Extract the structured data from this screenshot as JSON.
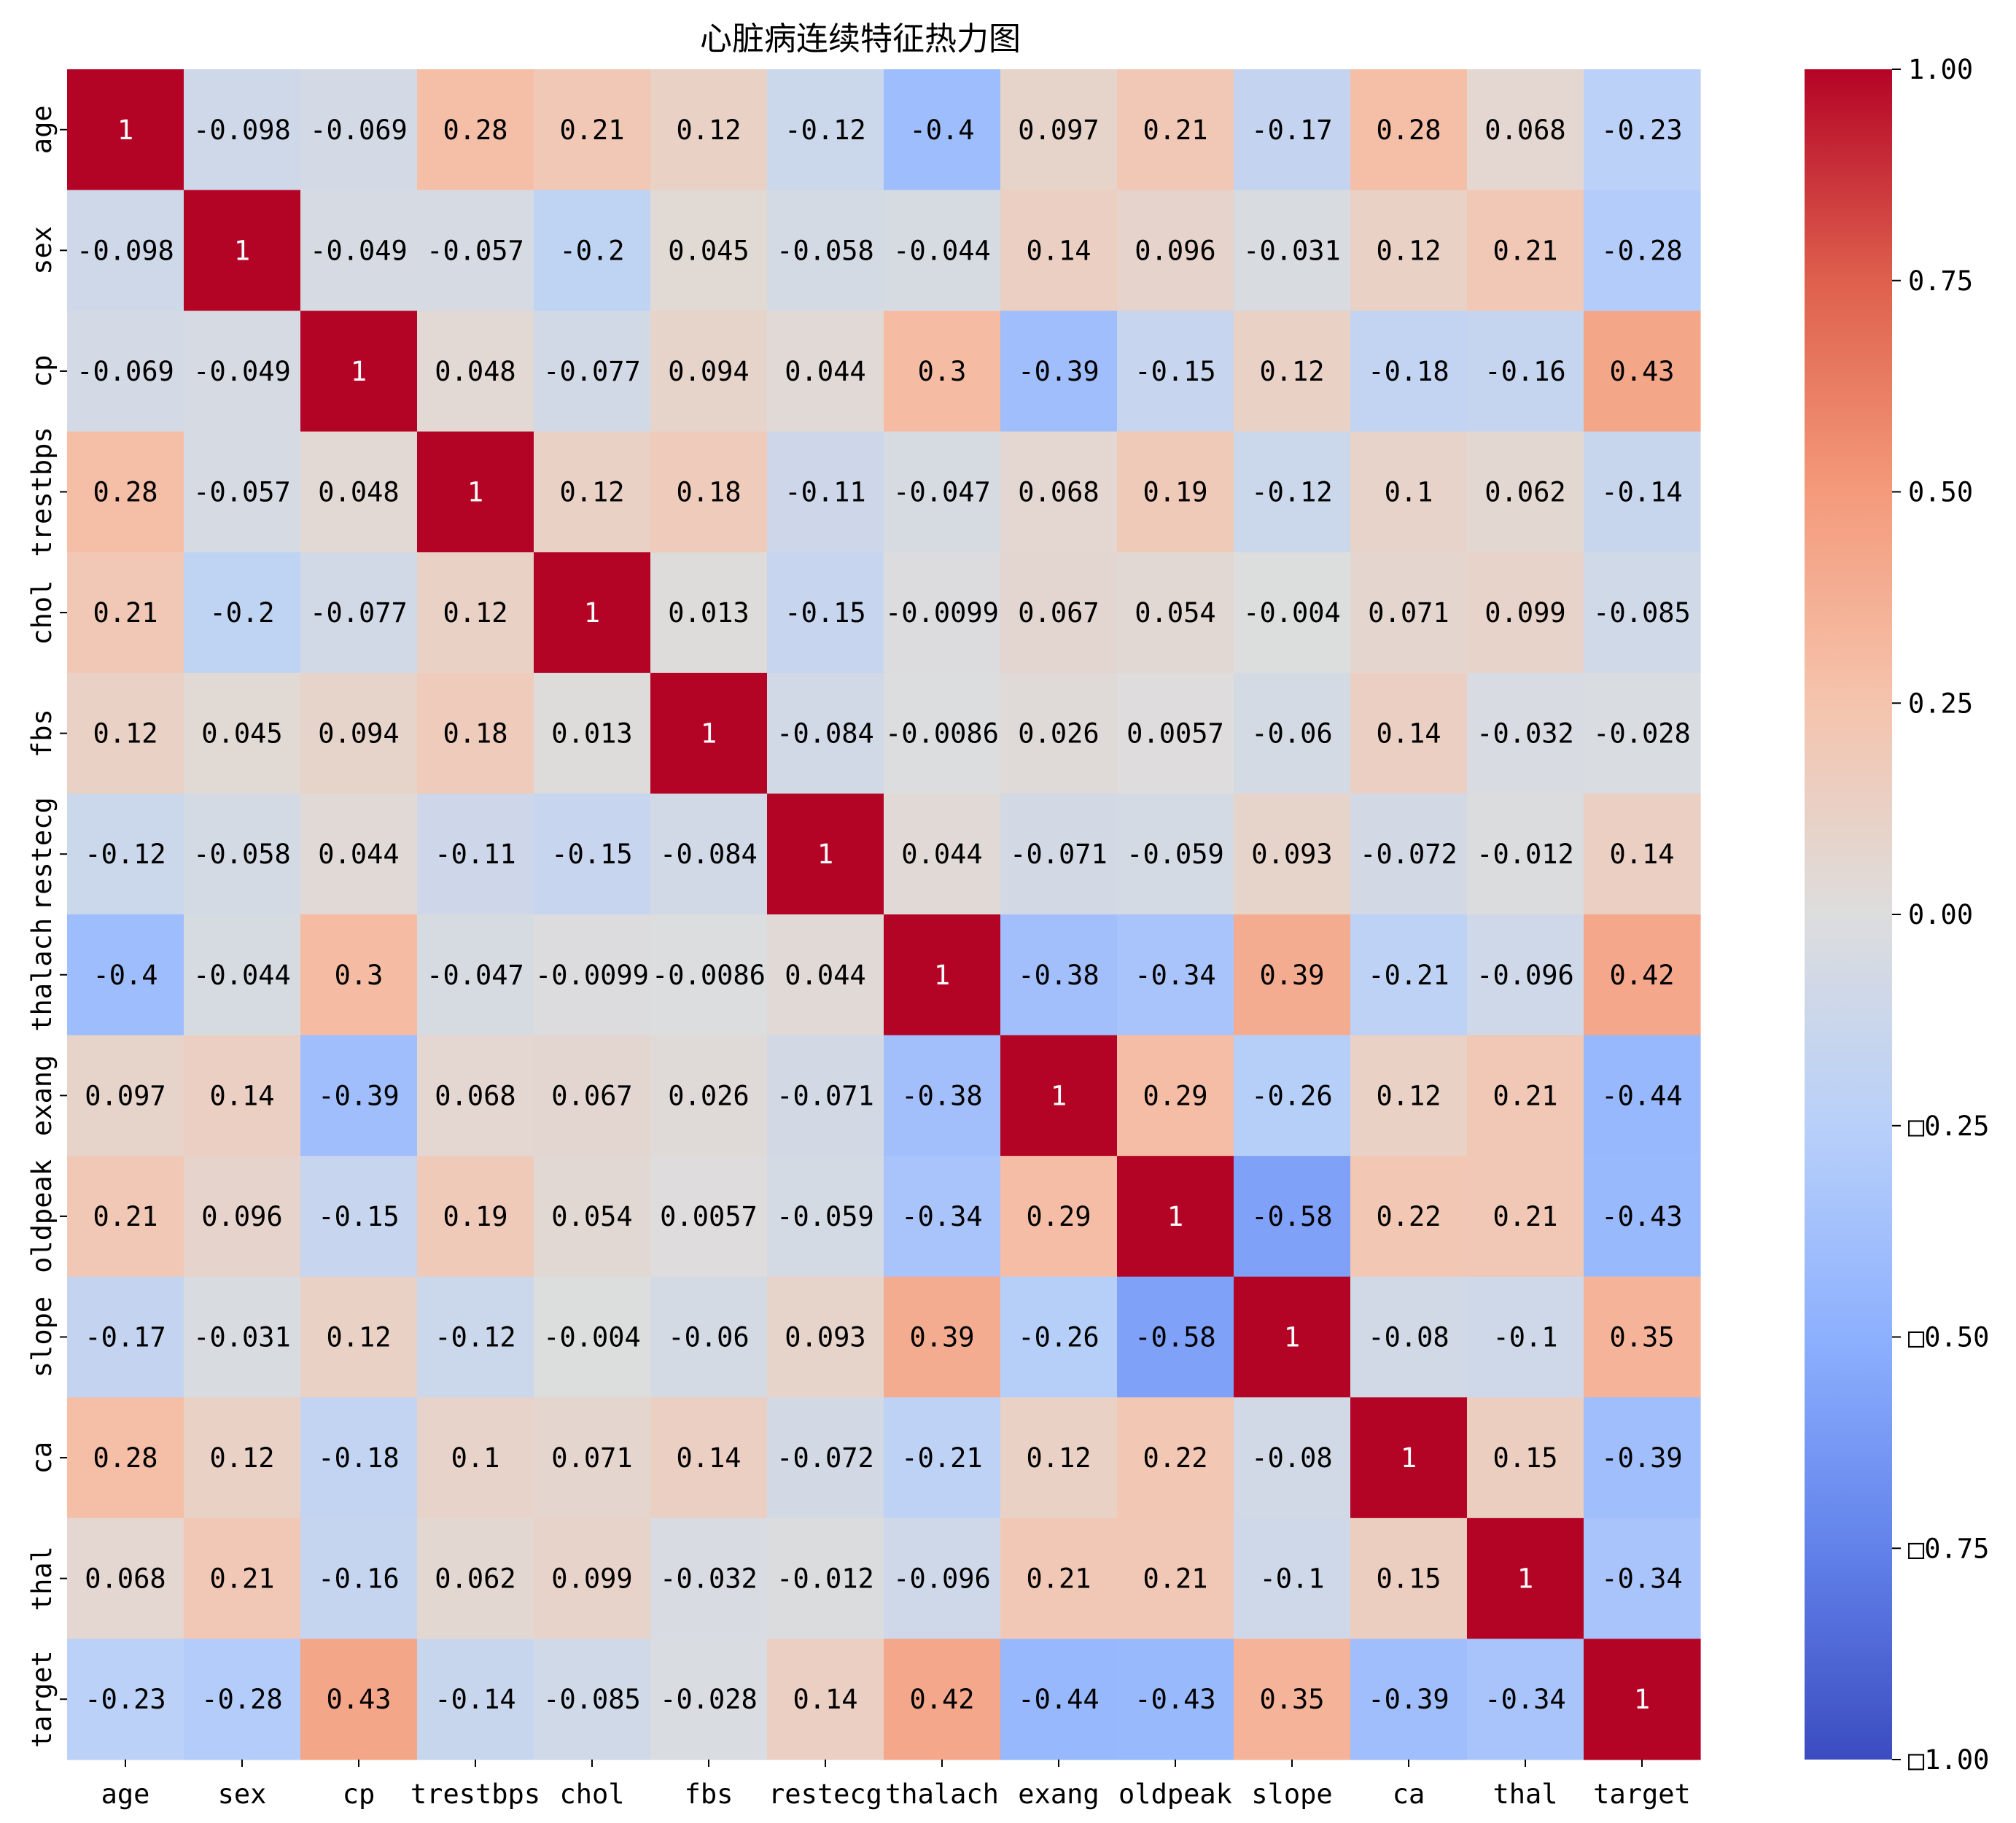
{
  "chart_data": {
    "type": "heatmap",
    "title": "心脏病连续特征热力图",
    "xlabel": "",
    "ylabel": "",
    "variables": [
      "age",
      "sex",
      "cp",
      "trestbps",
      "chol",
      "fbs",
      "restecg",
      "thalach",
      "exang",
      "oldpeak",
      "slope",
      "ca",
      "thal",
      "target"
    ],
    "values": [
      [
        1,
        -0.098,
        -0.069,
        0.28,
        0.21,
        0.12,
        -0.12,
        -0.4,
        0.097,
        0.21,
        -0.17,
        0.28,
        0.068,
        -0.23
      ],
      [
        -0.098,
        1,
        -0.049,
        -0.057,
        -0.2,
        0.045,
        -0.058,
        -0.044,
        0.14,
        0.096,
        -0.031,
        0.12,
        0.21,
        -0.28
      ],
      [
        -0.069,
        -0.049,
        1,
        0.048,
        -0.077,
        0.094,
        0.044,
        0.3,
        -0.39,
        -0.15,
        0.12,
        -0.18,
        -0.16,
        0.43
      ],
      [
        0.28,
        -0.057,
        0.048,
        1,
        0.12,
        0.18,
        -0.11,
        -0.047,
        0.068,
        0.19,
        -0.12,
        0.1,
        0.062,
        -0.14
      ],
      [
        0.21,
        -0.2,
        -0.077,
        0.12,
        1,
        0.013,
        -0.15,
        -0.0099,
        0.067,
        0.054,
        -0.004,
        0.071,
        0.099,
        -0.085
      ],
      [
        0.12,
        0.045,
        0.094,
        0.18,
        0.013,
        1,
        -0.084,
        -0.0086,
        0.026,
        0.0057,
        -0.06,
        0.14,
        -0.032,
        -0.028
      ],
      [
        -0.12,
        -0.058,
        0.044,
        -0.11,
        -0.15,
        -0.084,
        1,
        0.044,
        -0.071,
        -0.059,
        0.093,
        -0.072,
        -0.012,
        0.14
      ],
      [
        -0.4,
        -0.044,
        0.3,
        -0.047,
        -0.0099,
        -0.0086,
        0.044,
        1,
        -0.38,
        -0.34,
        0.39,
        -0.21,
        -0.096,
        0.42
      ],
      [
        0.097,
        0.14,
        -0.39,
        0.068,
        0.067,
        0.026,
        -0.071,
        -0.38,
        1,
        0.29,
        -0.26,
        0.12,
        0.21,
        -0.44
      ],
      [
        0.21,
        0.096,
        -0.15,
        0.19,
        0.054,
        0.0057,
        -0.059,
        -0.34,
        0.29,
        1,
        -0.58,
        0.22,
        0.21,
        -0.43
      ],
      [
        -0.17,
        -0.031,
        0.12,
        -0.12,
        -0.004,
        -0.06,
        0.093,
        0.39,
        -0.26,
        -0.58,
        1,
        -0.08,
        -0.1,
        0.35
      ],
      [
        0.28,
        0.12,
        -0.18,
        0.1,
        0.071,
        0.14,
        -0.072,
        -0.21,
        0.12,
        0.22,
        -0.08,
        1,
        0.15,
        -0.39
      ],
      [
        0.068,
        0.21,
        -0.16,
        0.062,
        0.099,
        -0.032,
        -0.012,
        -0.096,
        0.21,
        0.21,
        -0.1,
        0.15,
        1,
        -0.34
      ],
      [
        -0.23,
        -0.28,
        0.43,
        -0.14,
        -0.085,
        -0.028,
        0.14,
        0.42,
        -0.44,
        -0.43,
        0.35,
        -0.39,
        -0.34,
        1
      ]
    ],
    "colormap": "coolwarm",
    "vmin": -1,
    "vmax": 1,
    "annot": true,
    "colorbar": {
      "ticks": [
        1.0,
        0.75,
        0.5,
        0.25,
        0.0,
        -0.25,
        -0.5,
        -0.75,
        -1.0
      ],
      "tick_labels": [
        "1.00",
        "0.75",
        "0.50",
        "0.25",
        "0.00",
        "□0.25",
        "□0.50",
        "□0.75",
        "□1.00"
      ],
      "placement": "right"
    },
    "grid": false
  }
}
